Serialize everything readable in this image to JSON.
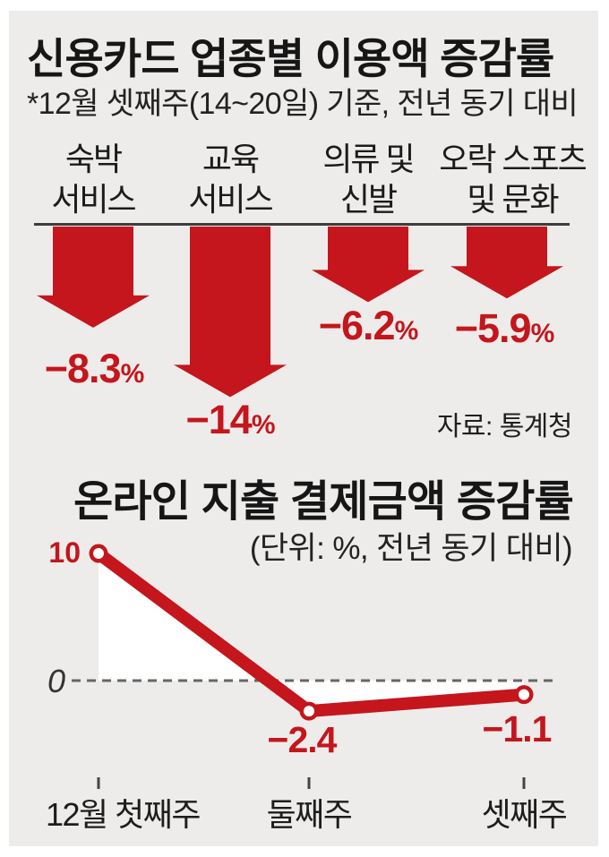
{
  "colors": {
    "background_panel": "#edecea",
    "frame": "#ffffff",
    "accent_red": "#c4161c",
    "text": "#1b1b1b",
    "axis_gray": "#666666"
  },
  "source": "자료: 통계청",
  "chart_data": [
    {
      "type": "bar",
      "title": "신용카드 업종별 이용액 증감률",
      "subtitle": "*12월 셋째주(14~20일) 기준, 전년 동기 대비",
      "categories": [
        "숙박\n서비스",
        "교육\n서비스",
        "의류 및\n신발",
        "오락 스포츠\n및 문화"
      ],
      "values": [
        -8.3,
        -14,
        -6.2,
        -5.9
      ],
      "data_labels": [
        "−8.3%",
        "−14%",
        "−6.2%",
        "−5.9%"
      ],
      "unit": "%",
      "direction": "down-arrows"
    },
    {
      "type": "line",
      "title": "온라인 지출 결제금액 증감률",
      "subtitle": "(단위: %, 전년 동기 대비)",
      "categories": [
        "12월 첫째주",
        "둘째주",
        "셋째주"
      ],
      "values": [
        10,
        -2.4,
        -1.1
      ],
      "data_labels": [
        "10",
        "−2.4",
        "−1.1"
      ],
      "yticks": [
        10,
        0
      ],
      "ylabel": "",
      "grid": "zero-dashed-line"
    }
  ]
}
